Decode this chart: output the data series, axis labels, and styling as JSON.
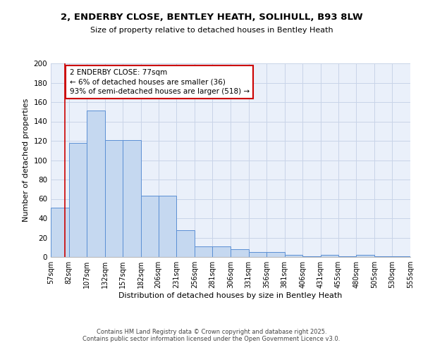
{
  "title1": "2, ENDERBY CLOSE, BENTLEY HEATH, SOLIHULL, B93 8LW",
  "title2": "Size of property relative to detached houses in Bentley Heath",
  "xlabel": "Distribution of detached houses by size in Bentley Heath",
  "ylabel": "Number of detached properties",
  "bin_edges": [
    57,
    82,
    107,
    132,
    157,
    182,
    206,
    231,
    256,
    281,
    306,
    331,
    356,
    381,
    406,
    431,
    455,
    480,
    505,
    530,
    555
  ],
  "bar_heights": [
    51,
    118,
    151,
    121,
    121,
    63,
    63,
    28,
    11,
    11,
    8,
    5,
    5,
    2,
    1,
    2,
    1,
    2,
    1,
    1
  ],
  "bar_color": "#c5d8f0",
  "bar_edge_color": "#5b8fd4",
  "bar_linewidth": 0.7,
  "grid_color": "#c8d4e8",
  "background_color": "#eaf0fa",
  "red_line_x": 77,
  "red_line_color": "#cc0000",
  "annotation_text": "2 ENDERBY CLOSE: 77sqm\n← 6% of detached houses are smaller (36)\n93% of semi-detached houses are larger (518) →",
  "annotation_box_color": "#ffffff",
  "annotation_box_edge": "#cc0000",
  "ylim": [
    0,
    200
  ],
  "yticks": [
    0,
    20,
    40,
    60,
    80,
    100,
    120,
    140,
    160,
    180,
    200
  ],
  "footer1": "Contains HM Land Registry data © Crown copyright and database right 2025.",
  "footer2": "Contains public sector information licensed under the Open Government Licence v3.0.",
  "tick_labels": [
    "57sqm",
    "82sqm",
    "107sqm",
    "132sqm",
    "157sqm",
    "182sqm",
    "206sqm",
    "231sqm",
    "256sqm",
    "281sqm",
    "306sqm",
    "331sqm",
    "356sqm",
    "381sqm",
    "406sqm",
    "431sqm",
    "455sqm",
    "480sqm",
    "505sqm",
    "530sqm",
    "555sqm"
  ]
}
